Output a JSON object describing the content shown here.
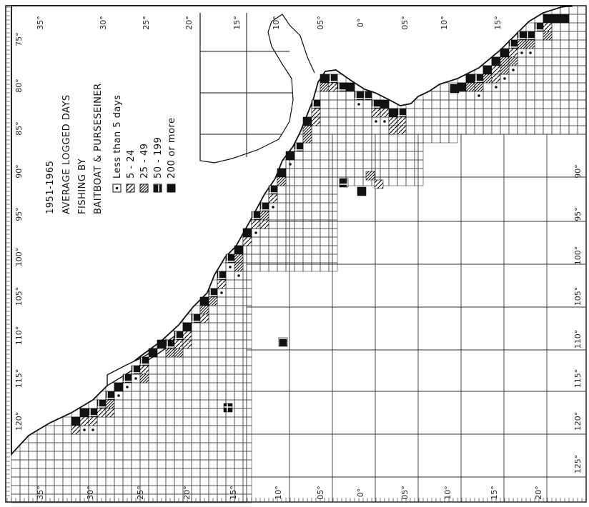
{
  "map": {
    "period": "1951-1965",
    "title_line1": "AVERAGE LOGGED DAYS",
    "title_line2": "FISHING BY",
    "title_line3": "BAITBOAT & PURSESEINER",
    "legend": [
      {
        "label": "Less than 5 days",
        "symbol": "dot"
      },
      {
        "label": "5 - 24",
        "symbol": "slash"
      },
      {
        "label": "25 - 49",
        "symbol": "hatch"
      },
      {
        "label": "50 - 199",
        "symbol": "cross"
      },
      {
        "label": "200 or more",
        "symbol": "solid"
      }
    ]
  },
  "axes": {
    "left_labels": [
      "75°",
      "80°",
      "85°",
      "90°",
      "95°",
      "100°",
      "105°",
      "110°",
      "115°",
      "120°"
    ],
    "bottom_labels": [
      "35°",
      "30°",
      "25°",
      "20°",
      "15°",
      "10°",
      "05°",
      "0°",
      "05°",
      "10°",
      "15°",
      "20°"
    ],
    "top_labels": [
      "35°",
      "30°",
      "25°",
      "20°",
      "15°",
      "10°",
      "05°",
      "0°",
      "05°",
      "10°",
      "15°"
    ],
    "right_labels": [
      "90°",
      "95°",
      "100°",
      "105°",
      "110°",
      "115°",
      "120°",
      "125°"
    ]
  },
  "colors": {
    "ink": "#111111",
    "grid": "#333333",
    "paper": "#ffffff"
  }
}
